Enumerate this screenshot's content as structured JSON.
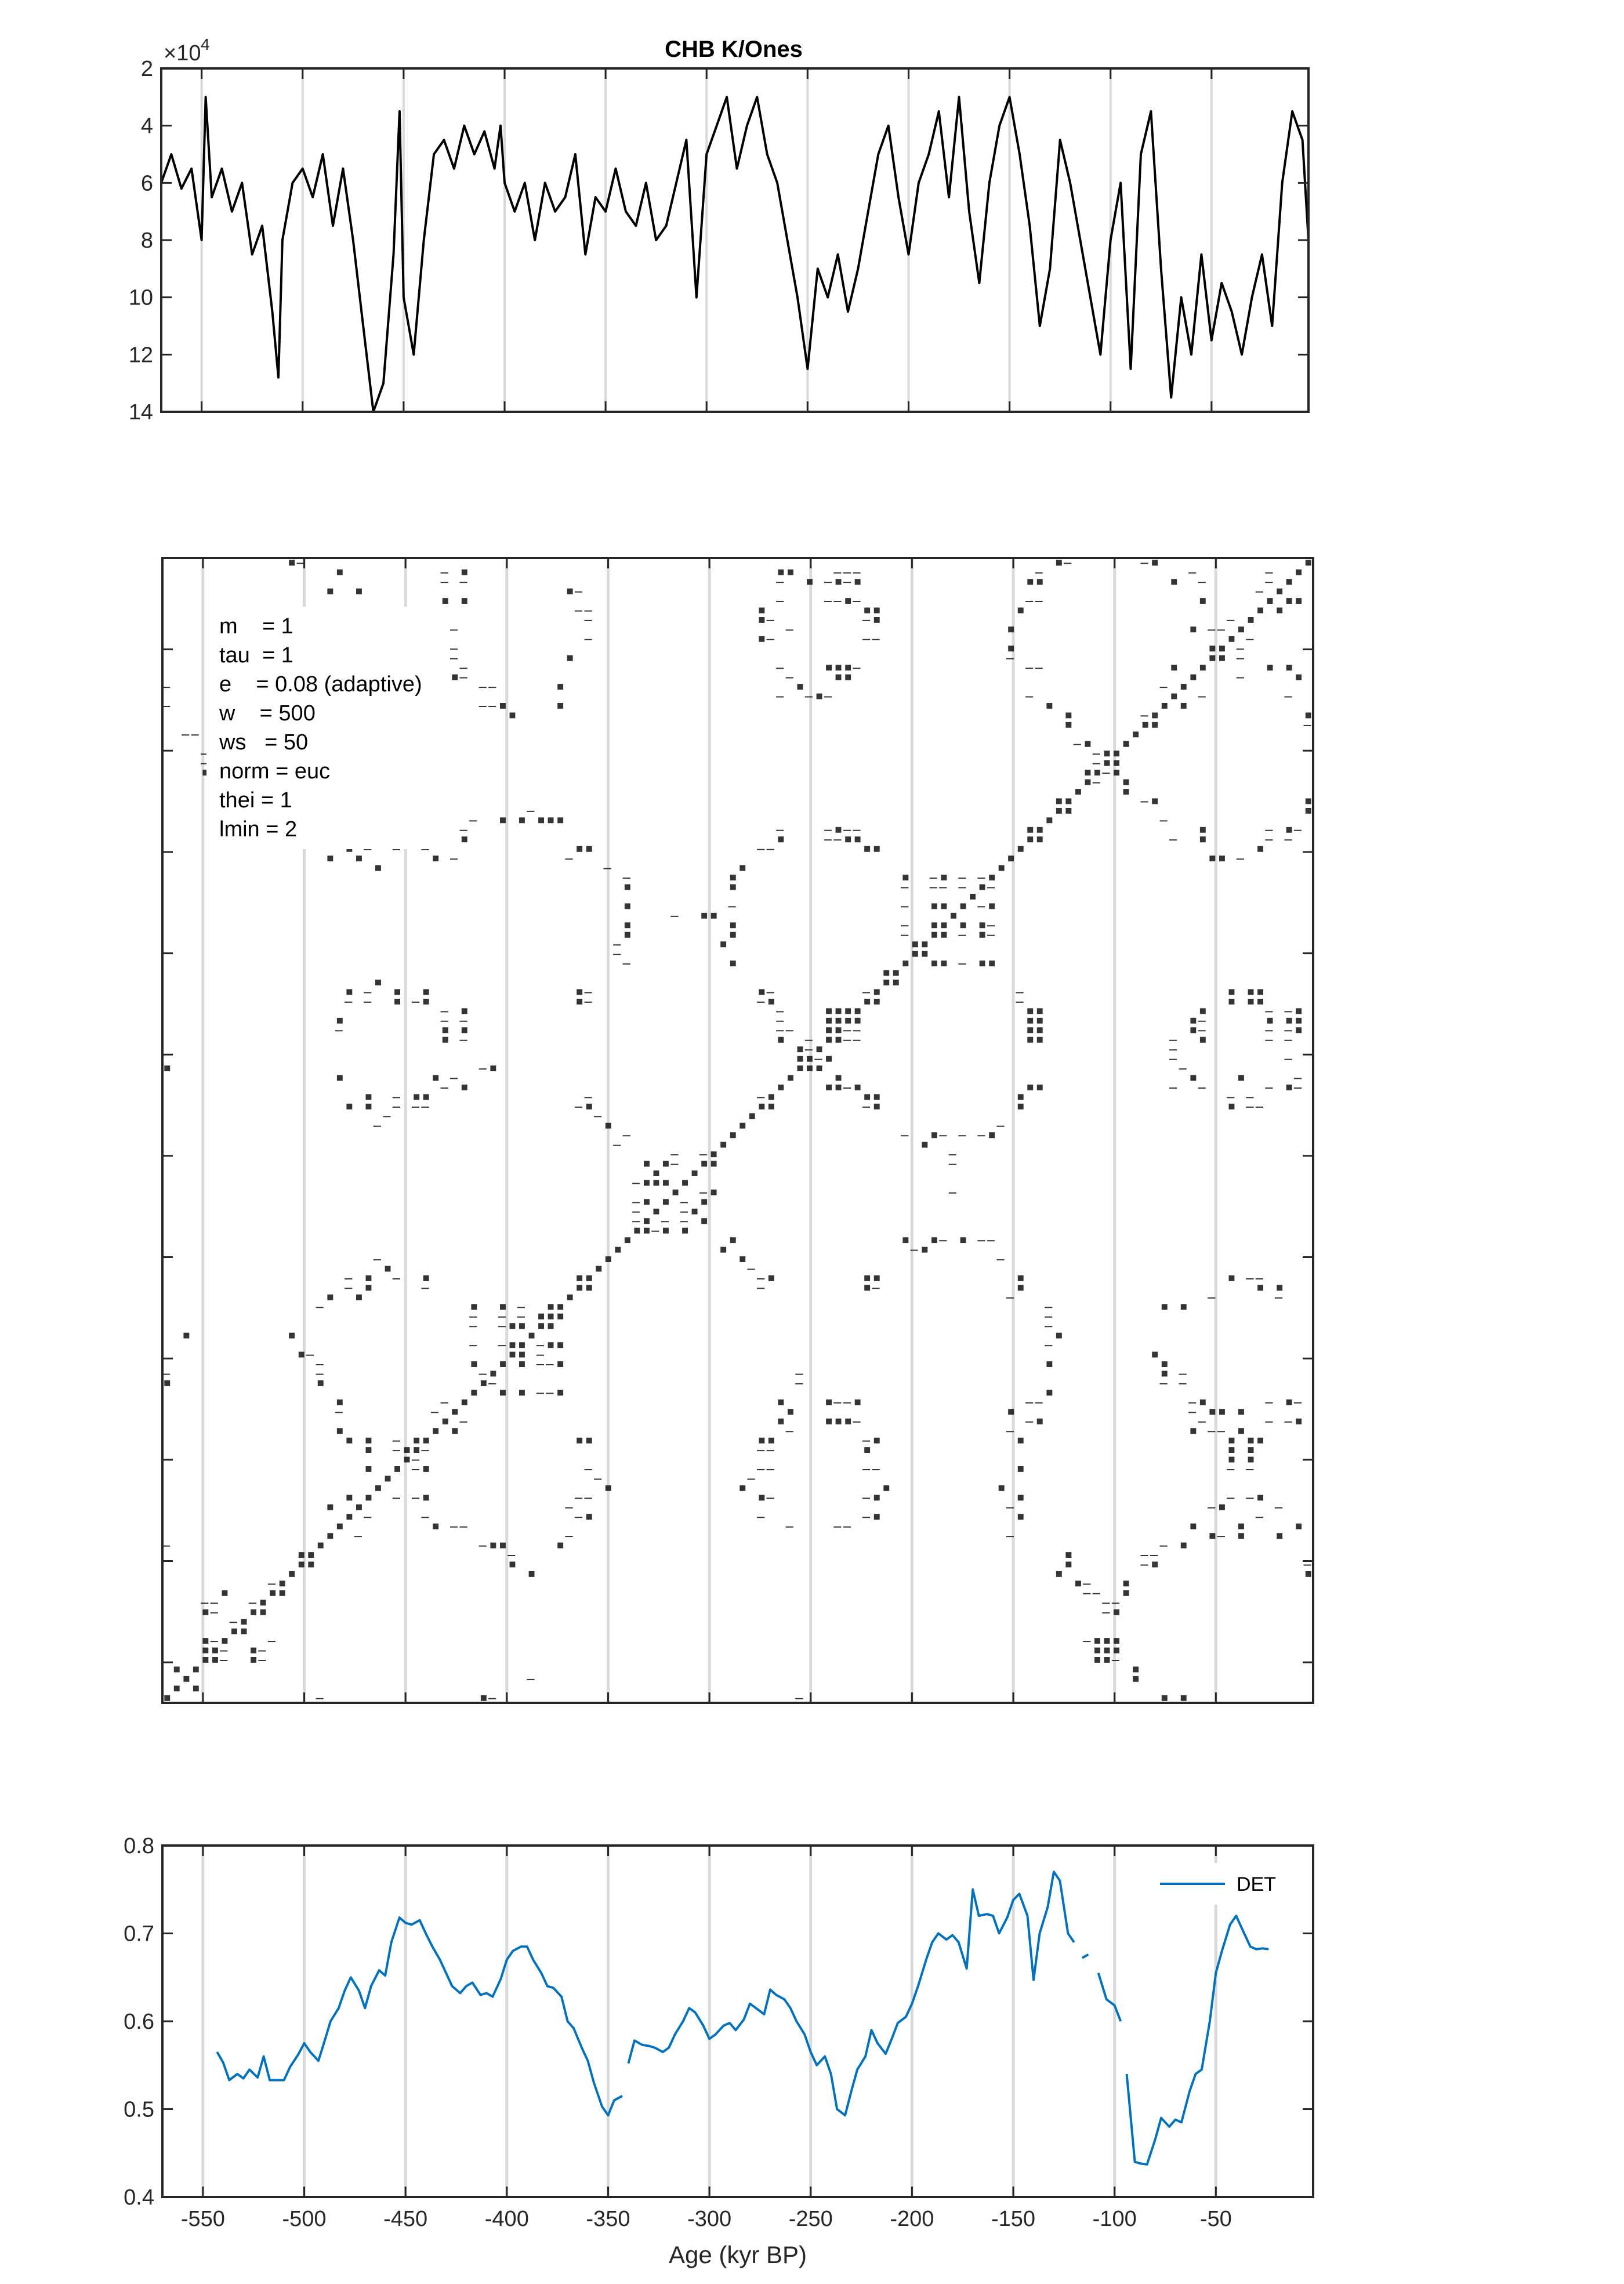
{
  "figure": {
    "title": "CHB K/Ones",
    "x_label": "Age (kyr BP)",
    "exponent_label": "×10",
    "exponent_power": "4"
  },
  "colors": {
    "series_top": "#000000",
    "series_det": "#0072BD",
    "gridline": "#d9d9d9",
    "axes": "#262626"
  },
  "parameters": [
    "m    = 1",
    "tau  = 1",
    "e    = 0.08 (adaptive)",
    "w    = 500",
    "ws   = 50",
    "norm = euc",
    "thei = 1",
    "lmin = 2"
  ],
  "chart_data": [
    {
      "type": "line",
      "name": "top-series",
      "title": "CHB K/Ones",
      "xlabel": "",
      "ylabel": "",
      "xlim": [
        -570,
        -2
      ],
      "ylim": [
        2,
        14
      ],
      "y_reversed": true,
      "y_scale_multiplier": "×10^4",
      "yticks": [
        2,
        4,
        6,
        8,
        10,
        12,
        14
      ],
      "ytick_labels": [
        "2",
        "4",
        "6",
        "8",
        "10",
        "12",
        "14"
      ],
      "vertical_gridlines_x": [
        -550,
        -500,
        -450,
        -400,
        -350,
        -300,
        -250,
        -200,
        -150,
        -100,
        -50
      ],
      "x": [
        -570,
        -565,
        -560,
        -555,
        -550,
        -548,
        -545,
        -540,
        -535,
        -530,
        -525,
        -520,
        -515,
        -512,
        -510,
        -505,
        -500,
        -495,
        -490,
        -485,
        -480,
        -475,
        -470,
        -465,
        -460,
        -455,
        -452,
        -450,
        -445,
        -440,
        -435,
        -430,
        -425,
        -420,
        -415,
        -410,
        -405,
        -402,
        -400,
        -395,
        -390,
        -385,
        -380,
        -375,
        -370,
        -365,
        -360,
        -355,
        -350,
        -345,
        -340,
        -335,
        -330,
        -325,
        -320,
        -315,
        -310,
        -305,
        -300,
        -295,
        -290,
        -285,
        -280,
        -275,
        -270,
        -265,
        -260,
        -255,
        -250,
        -245,
        -240,
        -235,
        -230,
        -225,
        -220,
        -215,
        -210,
        -205,
        -200,
        -195,
        -190,
        -185,
        -180,
        -175,
        -170,
        -165,
        -160,
        -155,
        -150,
        -145,
        -140,
        -135,
        -130,
        -125,
        -120,
        -115,
        -110,
        -105,
        -100,
        -95,
        -90,
        -85,
        -80,
        -75,
        -70,
        -65,
        -60,
        -55,
        -50,
        -45,
        -40,
        -35,
        -30,
        -25,
        -20,
        -15,
        -10,
        -5,
        -2
      ],
      "values": [
        6.0,
        5.0,
        6.2,
        5.5,
        8.0,
        3.0,
        6.5,
        5.5,
        7.0,
        6.0,
        8.5,
        7.5,
        10.5,
        12.8,
        8.0,
        6.0,
        5.5,
        6.5,
        5.0,
        7.5,
        5.5,
        8.0,
        11.0,
        14.0,
        13.0,
        8.5,
        3.5,
        10.0,
        12.0,
        8.0,
        5.0,
        4.5,
        5.5,
        4.0,
        5.0,
        4.2,
        5.5,
        4.0,
        6.0,
        7.0,
        6.0,
        8.0,
        6.0,
        7.0,
        6.5,
        5.0,
        8.5,
        6.5,
        7.0,
        5.5,
        7.0,
        7.5,
        6.0,
        8.0,
        7.5,
        6.0,
        4.5,
        10.0,
        5.0,
        4.0,
        3.0,
        5.5,
        4.0,
        3.0,
        5.0,
        6.0,
        8.0,
        10.0,
        12.5,
        9.0,
        10.0,
        8.5,
        10.5,
        9.0,
        7.0,
        5.0,
        4.0,
        6.5,
        8.5,
        6.0,
        5.0,
        3.5,
        6.5,
        3.0,
        7.0,
        9.5,
        6.0,
        4.0,
        3.0,
        5.0,
        7.5,
        11.0,
        9.0,
        4.5,
        6.0,
        8.0,
        10.0,
        12.0,
        8.0,
        6.0,
        12.5,
        5.0,
        3.5,
        9.0,
        13.5,
        10.0,
        12.0,
        8.5,
        11.5,
        9.5,
        10.5,
        12.0,
        10.0,
        8.5,
        11.0,
        6.0,
        3.5,
        4.5,
        8.0
      ]
    },
    {
      "type": "heatmap",
      "name": "recurrence-plot",
      "description_free": true,
      "xlim": [
        -570,
        -2
      ],
      "ylim": [
        -570,
        -2
      ],
      "vertical_gridlines_x": [
        -550,
        -500,
        -450,
        -400,
        -350,
        -300,
        -250,
        -200,
        -150,
        -100,
        -50
      ]
    },
    {
      "type": "line",
      "name": "det-series",
      "xlabel": "Age (kyr BP)",
      "ylabel": "",
      "xlim": [
        -570,
        -2
      ],
      "ylim": [
        0.4,
        0.8
      ],
      "yticks": [
        0.4,
        0.5,
        0.6,
        0.7,
        0.8
      ],
      "ytick_labels": [
        "0.4",
        "0.5",
        "0.6",
        "0.7",
        "0.8"
      ],
      "xticks": [
        -550,
        -500,
        -450,
        -400,
        -350,
        -300,
        -250,
        -200,
        -150,
        -100,
        -50
      ],
      "xtick_labels": [
        "-550",
        "-500",
        "-450",
        "-400",
        "-350",
        "-300",
        "-250",
        "-200",
        "-150",
        "-100",
        "-50"
      ],
      "legend": [
        "DET"
      ],
      "legend_location": "top-right",
      "series": [
        {
          "name": "DET",
          "segments": [
            {
              "x": [
                -543,
                -540,
                -537,
                -533,
                -530,
                -527,
                -523,
                -520,
                -517,
                -513,
                -510,
                -507,
                -503,
                -500,
                -497,
                -493,
                -490,
                -487,
                -483,
                -480,
                -477,
                -473,
                -470,
                -467,
                -463,
                -460,
                -457,
                -453,
                -450,
                -447,
                -443,
                -440,
                -437,
                -433,
                -430,
                -427,
                -423,
                -420,
                -417,
                -413,
                -410,
                -407,
                -403,
                -400,
                -397,
                -393,
                -390,
                -387,
                -383,
                -380,
                -377,
                -373,
                -370,
                -367,
                -363,
                -360,
                -357,
                -353,
                -350,
                -347,
                -343
              ],
              "y": [
                0.565,
                0.553,
                0.533,
                0.54,
                0.535,
                0.545,
                0.536,
                0.56,
                0.533,
                0.533,
                0.533,
                0.548,
                0.562,
                0.575,
                0.565,
                0.555,
                0.577,
                0.6,
                0.615,
                0.635,
                0.65,
                0.635,
                0.615,
                0.64,
                0.658,
                0.652,
                0.69,
                0.718,
                0.712,
                0.71,
                0.715,
                0.7,
                0.686,
                0.67,
                0.655,
                0.64,
                0.632,
                0.64,
                0.644,
                0.63,
                0.632,
                0.628,
                0.648,
                0.67,
                0.68,
                0.685,
                0.685,
                0.67,
                0.655,
                0.64,
                0.638,
                0.628,
                0.6,
                0.592,
                0.57,
                0.555,
                0.53,
                0.503,
                0.493,
                0.51,
                0.515
              ]
            },
            {
              "x": [
                -340,
                -337,
                -333,
                -330,
                -327,
                -323,
                -320,
                -317,
                -313,
                -310,
                -307,
                -303,
                -300,
                -297,
                -293,
                -290,
                -287,
                -283,
                -280,
                -277,
                -273,
                -270,
                -267,
                -263,
                -260,
                -257,
                -253,
                -250,
                -247,
                -243,
                -240,
                -237,
                -233,
                -230,
                -227,
                -223,
                -220,
                -217,
                -213,
                -210,
                -207,
                -203,
                -200,
                -197,
                -193,
                -190,
                -187,
                -183,
                -180,
                -177,
                -173,
                -170,
                -167,
                -163,
                -160,
                -157,
                -153,
                -150,
                -147,
                -143,
                -140,
                -137,
                -133,
                -130,
                -127,
                -123,
                -120
              ],
              "y": [
                0.552,
                0.578,
                0.573,
                0.572,
                0.57,
                0.565,
                0.57,
                0.585,
                0.6,
                0.615,
                0.61,
                0.595,
                0.58,
                0.585,
                0.595,
                0.598,
                0.59,
                0.602,
                0.62,
                0.615,
                0.608,
                0.636,
                0.63,
                0.625,
                0.615,
                0.6,
                0.585,
                0.565,
                0.55,
                0.56,
                0.54,
                0.5,
                0.493,
                0.52,
                0.545,
                0.56,
                0.59,
                0.575,
                0.563,
                0.58,
                0.598,
                0.605,
                0.62,
                0.64,
                0.67,
                0.69,
                0.7,
                0.693,
                0.698,
                0.69,
                0.66,
                0.75,
                0.72,
                0.722,
                0.72,
                0.7,
                0.718,
                0.738,
                0.745,
                0.72,
                0.647,
                0.7,
                0.73,
                0.77,
                0.76,
                0.7,
                0.69
              ]
            },
            {
              "x": [
                -116,
                -113
              ],
              "y": [
                0.672,
                0.676
              ]
            },
            {
              "x": [
                -108,
                -104,
                -100,
                -97
              ],
              "y": [
                0.655,
                0.625,
                0.618,
                0.6
              ]
            },
            {
              "x": [
                -94,
                -90,
                -87,
                -84,
                -80,
                -77,
                -73,
                -70,
                -67,
                -63,
                -60,
                -57,
                -53,
                -50,
                -47,
                -43,
                -40,
                -37,
                -33,
                -30,
                -27,
                -24
              ],
              "y": [
                0.54,
                0.44,
                0.438,
                0.437,
                0.465,
                0.49,
                0.48,
                0.488,
                0.485,
                0.52,
                0.54,
                0.545,
                0.6,
                0.655,
                0.68,
                0.71,
                0.72,
                0.705,
                0.685,
                0.682,
                0.683,
                0.682
              ]
            }
          ]
        }
      ]
    }
  ]
}
